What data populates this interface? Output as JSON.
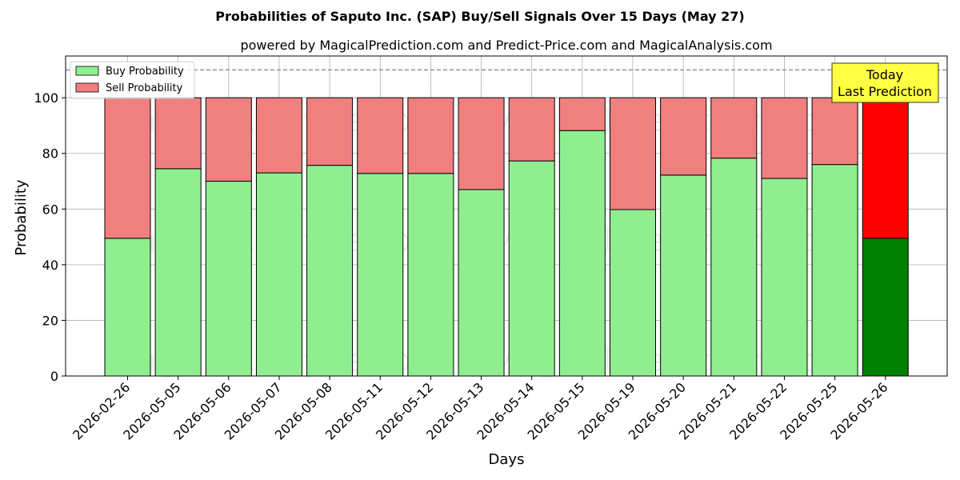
{
  "chart_data": {
    "type": "bar",
    "stacked": true,
    "title": "Probabilities of Saputo Inc. (SAP) Buy/Sell Signals Over 15 Days (May 27)",
    "subtitle": "powered by MagicalPrediction.com and Predict-Price.com and MagicalAnalysis.com",
    "xlabel": "Days",
    "ylabel": "Probability",
    "ylim": [
      0,
      115
    ],
    "yticks": [
      0,
      20,
      40,
      60,
      80,
      100
    ],
    "grid": true,
    "legend_position": "top-left",
    "reference_line": 110,
    "categories": [
      "2026-02-26",
      "2026-05-05",
      "2026-05-06",
      "2026-05-07",
      "2026-05-08",
      "2026-05-11",
      "2026-05-12",
      "2026-05-13",
      "2026-05-14",
      "2026-05-15",
      "2026-05-19",
      "2026-05-20",
      "2026-05-21",
      "2026-05-22",
      "2026-05-25",
      "2026-05-26"
    ],
    "series": [
      {
        "name": "Buy Probability",
        "color": "#90ee90",
        "highlight_color": "#008000",
        "values": [
          49.5,
          74.5,
          70,
          73,
          75.7,
          72.8,
          72.8,
          67,
          77.3,
          88.2,
          59.8,
          72.2,
          78.3,
          71,
          76,
          49.5
        ]
      },
      {
        "name": "Sell Probability",
        "color": "#f08080",
        "highlight_color": "#ff0000",
        "values": [
          50.5,
          25.5,
          30,
          27,
          24.3,
          27.2,
          27.2,
          33,
          22.7,
          11.8,
          40.2,
          27.8,
          21.7,
          29,
          24,
          50.5
        ]
      }
    ],
    "annotation": {
      "lines": [
        "Today",
        "Last Prediction"
      ],
      "bg_color": "#ffff44"
    },
    "watermarks": [
      "MagicalAnalysis.com",
      "MagicalPrediction.com"
    ]
  }
}
